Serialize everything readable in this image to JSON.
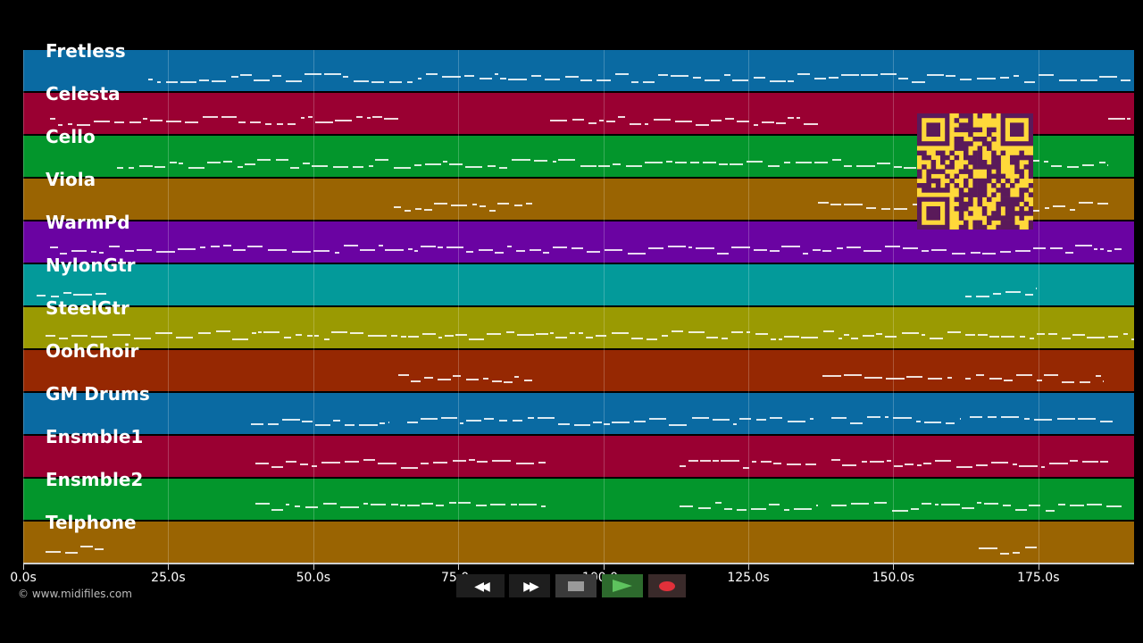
{
  "tracks": [
    {
      "name": "Fretless",
      "color": "#0a6aa2"
    },
    {
      "name": "Celesta",
      "color": "#9a0032"
    },
    {
      "name": "Cello",
      "color": "#03962c"
    },
    {
      "name": "Viola",
      "color": "#9a6402"
    },
    {
      "name": "WarmPd",
      "color": "#6a03a2"
    },
    {
      "name": "NylonGtr",
      "color": "#039a9a"
    },
    {
      "name": "SteelGtr",
      "color": "#9a9a02"
    },
    {
      "name": "OohChoir",
      "color": "#962802"
    },
    {
      "name": "GM Drums",
      "color": "#0a6aa2"
    },
    {
      "name": "Ensmble1",
      "color": "#9a0032"
    },
    {
      "name": "Ensmble2",
      "color": "#03962c"
    },
    {
      "name": "Telphone",
      "color": "#9a6402"
    }
  ],
  "timeline": {
    "ticks": [
      "0.0s",
      "25.0s",
      "50.0s",
      "75.0s",
      "100.0s",
      "125.0s",
      "150.0s",
      "175.0s"
    ]
  },
  "footer": {
    "copyright": "© www.midifiles.com"
  },
  "transport": {
    "rewind_icon": "rewind-icon",
    "fastforward_icon": "fast-forward-icon",
    "stop_icon": "stop-icon",
    "play_icon": "play-icon",
    "record_icon": "record-icon",
    "play_color": "#4caf50",
    "record_color": "#e0303a"
  },
  "qr": {
    "color_bg": "#ffd83a",
    "color_fg": "#5a1a5a"
  }
}
